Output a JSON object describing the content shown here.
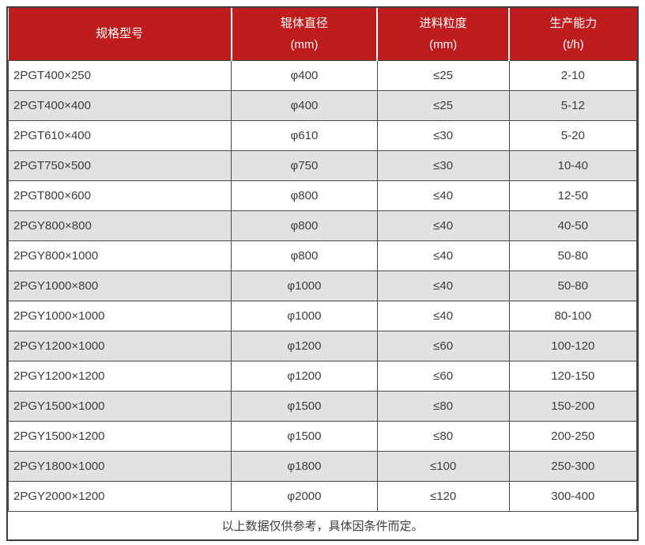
{
  "table": {
    "columns": [
      {
        "label": "规格型号",
        "unit": ""
      },
      {
        "label": "辊体直径",
        "unit": "(mm)"
      },
      {
        "label": "进料粒度",
        "unit": "(mm)"
      },
      {
        "label": "生产能力",
        "unit": "(t/h)"
      }
    ],
    "rows": [
      [
        "2PGT400×250",
        "φ400",
        "≤25",
        "2-10"
      ],
      [
        "2PGT400×400",
        "φ400",
        "≤25",
        "5-12"
      ],
      [
        "2PGT610×400",
        "φ610",
        "≤30",
        "5-20"
      ],
      [
        "2PGT750×500",
        "φ750",
        "≤30",
        "10-40"
      ],
      [
        "2PGT800×600",
        "φ800",
        "≤40",
        "12-50"
      ],
      [
        "2PGY800×800",
        "φ800",
        "≤40",
        "40-50"
      ],
      [
        "2PGY800×1000",
        "φ800",
        "≤40",
        "50-80"
      ],
      [
        "2PGY1000×800",
        "φ1000",
        "≤40",
        "50-80"
      ],
      [
        "2PGY1000×1000",
        "φ1000",
        "≤40",
        "80-100"
      ],
      [
        "2PGY1200×1000",
        "φ1200",
        "≤60",
        "100-120"
      ],
      [
        "2PGY1200×1200",
        "φ1200",
        "≤60",
        "120-150"
      ],
      [
        "2PGY1500×1000",
        "φ1500",
        "≤80",
        "150-200"
      ],
      [
        "2PGY1500×1200",
        "φ1500",
        "≤80",
        "200-250"
      ],
      [
        "2PGY1800×1000",
        "φ1800",
        "≤100",
        "250-300"
      ],
      [
        "2PGY2000×1200",
        "φ2000",
        "≤120",
        "300-400"
      ]
    ],
    "footnote": "以上数据仅供参考，具体因条件而定。",
    "colors": {
      "header_bg": "#bf1d1d",
      "header_text": "#ffffff",
      "row_bg": "#ffffff",
      "row_alt_bg": "#e2e2e2",
      "border": "#4a4a4a",
      "outer_border": "#3f3f3f",
      "text": "#3d3d3d"
    }
  }
}
